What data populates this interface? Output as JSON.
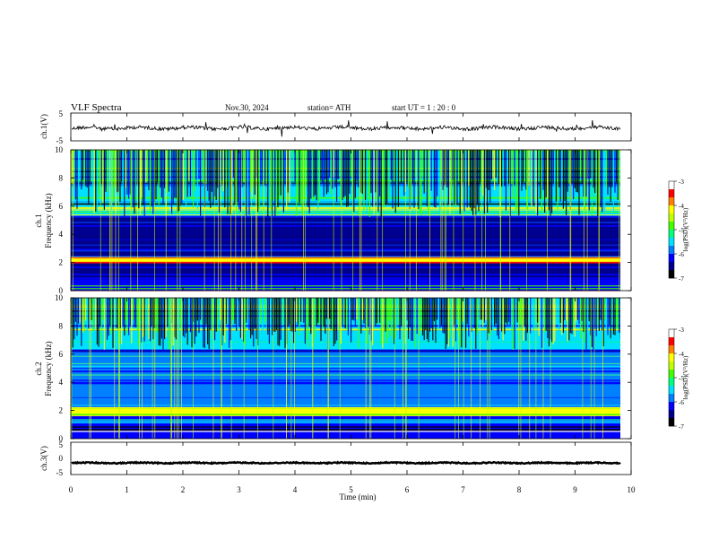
{
  "header": {
    "title": "VLF  Spectra",
    "date": "Nov.30, 2024",
    "station": "station= ATH",
    "start": "start  UT  =   1 : 20 : 0"
  },
  "chart_data": [
    {
      "type": "line",
      "panel": "ch1-waveform",
      "ylabel": "ch.1(V)",
      "ylim": [
        -5,
        5
      ],
      "yticks": [
        "5",
        "-5"
      ],
      "series_level_v": -0.4,
      "xlim": [
        0,
        10
      ],
      "color": "#000000"
    },
    {
      "type": "heatmap",
      "panel": "ch1-spectrogram",
      "ylabel_top": "ch.1",
      "ylabel": "Frequency  (kHz)",
      "ylim": [
        0,
        10
      ],
      "yticks": [
        "0",
        "2",
        "4",
        "6",
        "8",
        "10"
      ],
      "xlim": [
        0,
        9.8
      ],
      "bands_khz": [
        {
          "from": 0.0,
          "to": 0.9,
          "level": "mixed"
        },
        {
          "from": 0.9,
          "to": 2.0,
          "level": "low"
        },
        {
          "from": 2.0,
          "to": 2.4,
          "level": "high"
        },
        {
          "from": 2.4,
          "to": 5.2,
          "level": "low"
        },
        {
          "from": 5.2,
          "to": 10.0,
          "level": "bursty"
        }
      ],
      "colorbar": {
        "label": "log(PSD)(V²/Hz)",
        "ticks": [
          "-3",
          "-4",
          "-5",
          "-6",
          "-7"
        ],
        "range": [
          -7,
          -3
        ]
      }
    },
    {
      "type": "heatmap",
      "panel": "ch2-spectrogram",
      "ylabel_top": "ch.2",
      "ylabel": "Frequency  (kHz)",
      "ylim": [
        0,
        10
      ],
      "yticks": [
        "0",
        "2",
        "4",
        "6",
        "8",
        "10"
      ],
      "xlim": [
        0,
        9.8
      ],
      "bands_khz": [
        {
          "from": 0.0,
          "to": 1.6,
          "level": "mixed"
        },
        {
          "from": 1.6,
          "to": 2.3,
          "level": "high"
        },
        {
          "from": 2.3,
          "to": 6.3,
          "level": "mid"
        },
        {
          "from": 6.3,
          "to": 10.0,
          "level": "bursty"
        }
      ],
      "colorbar": {
        "label": "log(PSD)(V²/Hz)",
        "ticks": [
          "-3",
          "-4",
          "-5",
          "-6",
          "-7"
        ],
        "range": [
          -7,
          -3
        ]
      }
    },
    {
      "type": "line",
      "panel": "ch3-waveform",
      "ylabel": "ch.3(V)",
      "ylim": [
        -5,
        5
      ],
      "yticks": [
        "5",
        "0",
        "-5"
      ],
      "series_level_v": -1.4,
      "xlim": [
        0,
        9.8
      ],
      "color": "#000000"
    }
  ],
  "x_axis": {
    "label": "Time  (min)",
    "ticks": [
      "0",
      "1",
      "2",
      "3",
      "4",
      "5",
      "6",
      "7",
      "8",
      "9",
      "10"
    ],
    "range": [
      0,
      10
    ]
  },
  "colormap": [
    "#000000",
    "#00008b",
    "#0000ff",
    "#0080ff",
    "#00e0ff",
    "#00ff80",
    "#40ff00",
    "#c0ff00",
    "#ffff00",
    "#ff8000",
    "#ff0000",
    "#ffffff"
  ]
}
